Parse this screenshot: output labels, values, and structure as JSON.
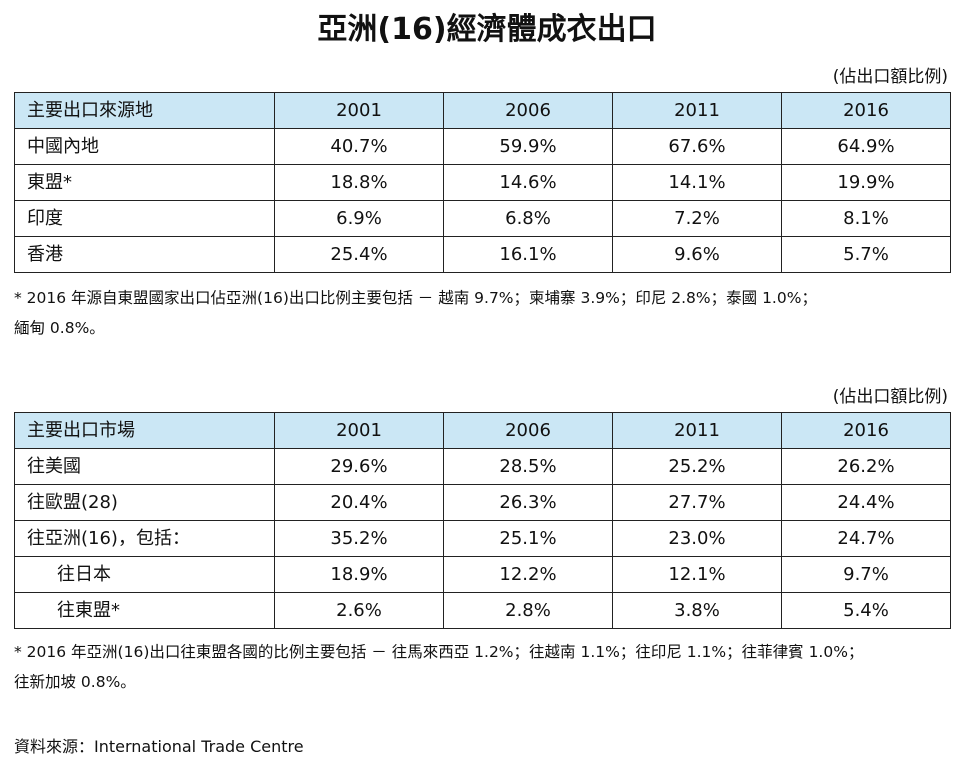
{
  "title": "亞洲(16)經濟體成衣出口",
  "unit_note": "(佔出口額比例)",
  "table1": {
    "headers": [
      "主要出口來源地",
      "2001",
      "2006",
      "2011",
      "2016"
    ],
    "rows": [
      {
        "label": "中國內地",
        "values": [
          "40.7%",
          "59.9%",
          "67.6%",
          "64.9%"
        ]
      },
      {
        "label": "東盟*",
        "values": [
          "18.8%",
          "14.6%",
          "14.1%",
          "19.9%"
        ]
      },
      {
        "label": "印度",
        "values": [
          "6.9%",
          "6.8%",
          "7.2%",
          "8.1%"
        ]
      },
      {
        "label": "香港",
        "values": [
          "25.4%",
          "16.1%",
          "9.6%",
          "5.7%"
        ]
      }
    ],
    "footnote_lines": [
      "* 2016 年源自東盟國家出口佔亞洲(16)出口比例主要包括 － 越南 9.7%；柬埔寨 3.9%；印尼 2.8%；泰國 1.0%；",
      "緬甸 0.8%。"
    ]
  },
  "table2": {
    "headers": [
      "主要出口市場",
      "2001",
      "2006",
      "2011",
      "2016"
    ],
    "rows": [
      {
        "label": "往美國",
        "values": [
          "29.6%",
          "28.5%",
          "25.2%",
          "26.2%"
        ]
      },
      {
        "label": "往歐盟(28)",
        "values": [
          "20.4%",
          "26.3%",
          "27.7%",
          "24.4%"
        ]
      },
      {
        "label": "往亞洲(16)，包括：",
        "values": [
          "35.2%",
          "25.1%",
          "23.0%",
          "24.7%"
        ]
      },
      {
        "label": "往日本",
        "values": [
          "18.9%",
          "12.2%",
          "12.1%",
          "9.7%"
        ]
      },
      {
        "label": "往東盟*",
        "values": [
          "2.6%",
          "2.8%",
          "3.8%",
          "5.4%"
        ]
      }
    ],
    "footnote_lines": [
      "* 2016 年亞洲(16)出口往東盟各國的比例主要包括 － 往馬來西亞 1.2%；往越南 1.1%；往印尼 1.1%；往菲律賓 1.0%；",
      "往新加坡 0.8%。"
    ]
  },
  "source": "資料來源：International Trade Centre"
}
